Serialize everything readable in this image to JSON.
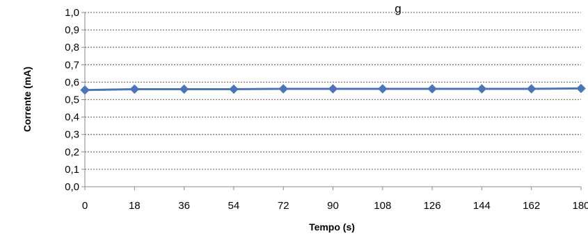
{
  "chart_data": {
    "type": "line",
    "title": "",
    "title_fragment": "g",
    "xlabel": "Tempo (s)",
    "ylabel": "Corrente (mA)",
    "x": [
      0,
      18,
      36,
      54,
      72,
      90,
      108,
      126,
      144,
      162,
      180
    ],
    "x_tick_labels": [
      "0",
      "18",
      "36",
      "54",
      "72",
      "90",
      "108",
      "126",
      "144",
      "162",
      "180"
    ],
    "y_tick_labels": [
      "0,0",
      "0,1",
      "0,2",
      "0,3",
      "0,4",
      "0,5",
      "0,6",
      "0,7",
      "0,8",
      "0,9",
      "1,0"
    ],
    "xlim": [
      0,
      180
    ],
    "ylim": [
      0,
      1.0
    ],
    "grid": "horizontal-dotted",
    "series": [
      {
        "values": [
          0.555,
          0.56,
          0.56,
          0.56,
          0.562,
          0.562,
          0.562,
          0.562,
          0.562,
          0.562,
          0.564
        ],
        "color": "#4a76b8",
        "marker": "diamond"
      }
    ]
  }
}
